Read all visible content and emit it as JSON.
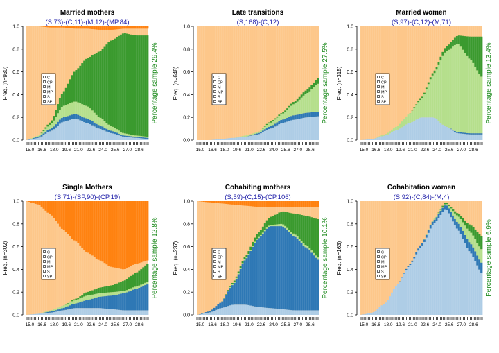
{
  "chart_data": [
    {
      "type": "area",
      "title": "Married mothers",
      "subtitle": "(S,73)-(C,11)-(M,12)-(MP,84)",
      "ylabel": "Freq. (n=930)",
      "right_label": "Percentage sample 29.4%",
      "x_ticks": [
        "15.0",
        "16.6",
        "18.0",
        "19.6",
        "21.0",
        "22.6",
        "24.0",
        "25.6",
        "27.0",
        "28.6"
      ],
      "y_ticks": [
        "0.0",
        "0.2",
        "0.4",
        "0.6",
        "0.8",
        "1.0"
      ],
      "ylim": [
        0,
        1
      ],
      "legend": [
        "C",
        "CP",
        "M",
        "MP",
        "S",
        "SP"
      ],
      "x": [
        15.0,
        16.5,
        18.0,
        19.5,
        21.0,
        22.5,
        24.0,
        25.5,
        27.0,
        28.5,
        30.0
      ],
      "series": {
        "C": [
          0.0,
          0.02,
          0.08,
          0.16,
          0.19,
          0.15,
          0.1,
          0.06,
          0.03,
          0.02,
          0.01
        ],
        "CP": [
          0.0,
          0.01,
          0.02,
          0.04,
          0.04,
          0.04,
          0.03,
          0.02,
          0.01,
          0.01,
          0.01
        ],
        "M": [
          0.0,
          0.01,
          0.04,
          0.1,
          0.11,
          0.11,
          0.07,
          0.04,
          0.02,
          0.01,
          0.01
        ],
        "MP": [
          0.0,
          0.0,
          0.02,
          0.12,
          0.27,
          0.42,
          0.58,
          0.76,
          0.88,
          0.88,
          0.89
        ],
        "SP": [
          0.0,
          0.0,
          0.01,
          0.01,
          0.02,
          0.02,
          0.03,
          0.03,
          0.02,
          0.02,
          0.02
        ]
      }
    },
    {
      "type": "area",
      "title": "Late transitions",
      "subtitle": "(S,168)-(C,12)",
      "ylabel": "Freq. (n=648)",
      "right_label": "Percentage sample 27.5%",
      "x_ticks": [
        "15.0",
        "16.6",
        "18.0",
        "19.6",
        "21.0",
        "22.6",
        "24.0",
        "25.6",
        "27.0",
        "28.6"
      ],
      "y_ticks": [
        "0.0",
        "0.2",
        "0.4",
        "0.6",
        "0.8",
        "1.0"
      ],
      "ylim": [
        0,
        1
      ],
      "legend": [
        "C",
        "CP",
        "M",
        "MP",
        "S",
        "SP"
      ],
      "x": [
        15.0,
        16.5,
        18.0,
        19.5,
        21.0,
        22.5,
        24.0,
        25.5,
        27.0,
        28.5,
        30.0
      ],
      "series": {
        "C": [
          0.0,
          0.0,
          0.01,
          0.02,
          0.03,
          0.05,
          0.1,
          0.15,
          0.18,
          0.2,
          0.21
        ],
        "CP": [
          0.0,
          0.0,
          0.0,
          0.0,
          0.0,
          0.01,
          0.02,
          0.03,
          0.04,
          0.04,
          0.04
        ],
        "M": [
          0.0,
          0.0,
          0.0,
          0.0,
          0.01,
          0.01,
          0.03,
          0.05,
          0.1,
          0.17,
          0.25
        ],
        "MP": [
          0.0,
          0.0,
          0.0,
          0.0,
          0.0,
          0.0,
          0.01,
          0.01,
          0.02,
          0.03,
          0.05
        ],
        "SP": [
          0.0,
          0.0,
          0.0,
          0.0,
          0.0,
          0.0,
          0.0,
          0.0,
          0.0,
          0.0,
          0.0
        ]
      }
    },
    {
      "type": "area",
      "title": "Married women",
      "subtitle": "(S,97)-(C,12)-(M,71)",
      "ylabel": "Freq. (n=315)",
      "right_label": "Percentage sample 13.4%",
      "x_ticks": [
        "15.0",
        "16.6",
        "18.0",
        "19.6",
        "21.0",
        "22.6",
        "24.0",
        "25.6",
        "27.0",
        "28.6"
      ],
      "y_ticks": [
        "0.0",
        "0.2",
        "0.4",
        "0.6",
        "0.8",
        "1.0"
      ],
      "ylim": [
        0,
        1
      ],
      "legend": [
        "C",
        "CP",
        "M",
        "MP",
        "S",
        "SP"
      ],
      "x": [
        15.0,
        16.5,
        18.0,
        19.5,
        21.0,
        22.5,
        24.0,
        25.5,
        27.0,
        28.5,
        30.0
      ],
      "series": {
        "C": [
          0.0,
          0.01,
          0.04,
          0.09,
          0.15,
          0.2,
          0.2,
          0.12,
          0.06,
          0.05,
          0.05
        ],
        "CP": [
          0.0,
          0.0,
          0.0,
          0.0,
          0.0,
          0.0,
          0.0,
          0.0,
          0.01,
          0.01,
          0.01
        ],
        "M": [
          0.0,
          0.0,
          0.01,
          0.03,
          0.08,
          0.16,
          0.38,
          0.66,
          0.78,
          0.65,
          0.49
        ],
        "MP": [
          0.0,
          0.0,
          0.0,
          0.0,
          0.0,
          0.01,
          0.02,
          0.04,
          0.07,
          0.2,
          0.36
        ],
        "SP": [
          0.0,
          0.0,
          0.0,
          0.0,
          0.0,
          0.0,
          0.0,
          0.0,
          0.0,
          0.0,
          0.0
        ]
      }
    },
    {
      "type": "area",
      "title": "Single Mothers",
      "subtitle": "(S,71)-(SP,90)-(CP,19)",
      "ylabel": "Freq. (n=302)",
      "right_label": "Percentage sample 12.8%",
      "x_ticks": [
        "15.0",
        "16.6",
        "18.0",
        "19.6",
        "21.0",
        "22.6",
        "24.0",
        "25.6",
        "27.0",
        "28.6"
      ],
      "y_ticks": [
        "0.0",
        "0.2",
        "0.4",
        "0.6",
        "0.8",
        "1.0"
      ],
      "ylim": [
        0,
        1
      ],
      "legend": [
        "C",
        "CP",
        "M",
        "MP",
        "S",
        "SP"
      ],
      "x": [
        15.0,
        16.5,
        18.0,
        19.5,
        21.0,
        22.5,
        24.0,
        25.5,
        27.0,
        28.5,
        30.0
      ],
      "series": {
        "C": [
          0.0,
          0.01,
          0.02,
          0.04,
          0.06,
          0.06,
          0.06,
          0.05,
          0.04,
          0.04,
          0.04
        ],
        "CP": [
          0.0,
          0.0,
          0.01,
          0.02,
          0.04,
          0.07,
          0.1,
          0.12,
          0.15,
          0.19,
          0.23
        ],
        "M": [
          0.0,
          0.0,
          0.01,
          0.02,
          0.03,
          0.04,
          0.03,
          0.03,
          0.02,
          0.02,
          0.02
        ],
        "MP": [
          0.0,
          0.0,
          0.0,
          0.0,
          0.01,
          0.03,
          0.05,
          0.06,
          0.09,
          0.12,
          0.16
        ],
        "SP": [
          0.0,
          0.03,
          0.12,
          0.25,
          0.35,
          0.45,
          0.52,
          0.58,
          0.6,
          0.55,
          0.52
        ]
      }
    },
    {
      "type": "area",
      "title": "Cohabiting mothers",
      "subtitle": "(S,59)-(C,15)-(CP,106)",
      "ylabel": "Freq. (n=237)",
      "right_label": "Percentage sample 10.1%",
      "x_ticks": [
        "15.0",
        "16.6",
        "18.0",
        "19.6",
        "21.0",
        "22.6",
        "24.0",
        "25.6",
        "27.0",
        "28.6"
      ],
      "y_ticks": [
        "0.0",
        "0.2",
        "0.4",
        "0.6",
        "0.8",
        "1.0"
      ],
      "ylim": [
        0,
        1
      ],
      "legend": [
        "C",
        "CP",
        "M",
        "MP",
        "S",
        "SP"
      ],
      "x": [
        15.0,
        16.5,
        18.0,
        19.5,
        21.0,
        22.5,
        24.0,
        25.5,
        27.0,
        28.5,
        30.0
      ],
      "series": {
        "C": [
          0.0,
          0.02,
          0.06,
          0.09,
          0.09,
          0.07,
          0.06,
          0.05,
          0.04,
          0.04,
          0.04
        ],
        "CP": [
          0.0,
          0.01,
          0.05,
          0.18,
          0.4,
          0.6,
          0.72,
          0.73,
          0.65,
          0.55,
          0.44
        ],
        "M": [
          0.0,
          0.0,
          0.0,
          0.01,
          0.01,
          0.01,
          0.01,
          0.02,
          0.02,
          0.02,
          0.02
        ],
        "MP": [
          0.0,
          0.0,
          0.0,
          0.01,
          0.02,
          0.04,
          0.07,
          0.11,
          0.18,
          0.26,
          0.34
        ],
        "SP": [
          0.0,
          0.01,
          0.02,
          0.03,
          0.04,
          0.05,
          0.05,
          0.05,
          0.05,
          0.05,
          0.05
        ]
      }
    },
    {
      "type": "area",
      "title": "Cohabitation  women",
      "subtitle": "(S,92)-(C,84)-(M,4)",
      "ylabel": "Freq. (n=163)",
      "right_label": "Percentage sample 6.9%",
      "x_ticks": [
        "15.0",
        "16.6",
        "18.0",
        "19.6",
        "21.0",
        "22.6",
        "24.0",
        "25.6",
        "27.0",
        "28.6"
      ],
      "y_ticks": [
        "0.0",
        "0.2",
        "0.4",
        "0.6",
        "0.8",
        "1.0"
      ],
      "ylim": [
        0,
        1
      ],
      "legend": [
        "C",
        "CP",
        "M",
        "MP",
        "S",
        "SP"
      ],
      "x": [
        15.0,
        16.5,
        18.0,
        19.5,
        21.0,
        22.5,
        24.0,
        25.5,
        27.0,
        28.5,
        30.0
      ],
      "series": {
        "C": [
          0.0,
          0.02,
          0.1,
          0.26,
          0.43,
          0.6,
          0.8,
          0.93,
          0.75,
          0.55,
          0.36
        ],
        "CP": [
          0.0,
          0.0,
          0.0,
          0.0,
          0.01,
          0.02,
          0.03,
          0.04,
          0.06,
          0.08,
          0.09
        ],
        "M": [
          0.0,
          0.0,
          0.0,
          0.0,
          0.0,
          0.0,
          0.01,
          0.01,
          0.06,
          0.1,
          0.12
        ],
        "MP": [
          0.0,
          0.0,
          0.0,
          0.0,
          0.0,
          0.0,
          0.0,
          0.01,
          0.02,
          0.06,
          0.12
        ],
        "SP": [
          0.0,
          0.0,
          0.0,
          0.0,
          0.0,
          0.0,
          0.0,
          0.0,
          0.0,
          0.0,
          0.0
        ]
      }
    }
  ],
  "colors": {
    "C": "#aecde6",
    "CP": "#2e78b5",
    "M": "#b5df8c",
    "MP": "#3a9a2e",
    "S": "#fdc78a",
    "SP": "#ff8210",
    "subtitle": "#2222aa",
    "right_label": "#1c8a1c"
  }
}
